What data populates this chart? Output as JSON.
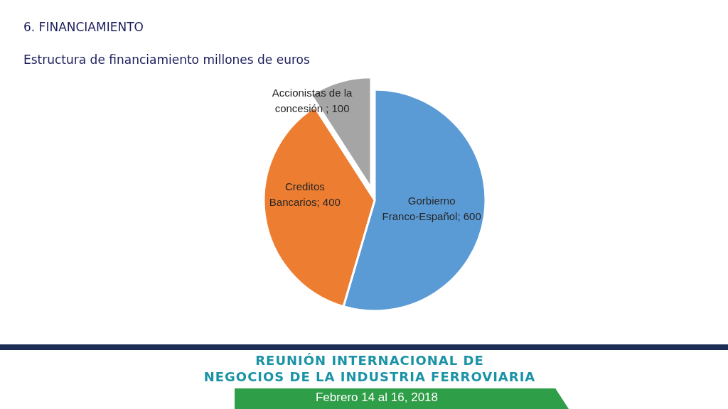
{
  "chart_data": {
    "type": "pie",
    "title": "6. FINANCIAMIENTO",
    "subtitle": "Estructura de financiamiento millones de euros",
    "categories": [
      "Gorbierno Franco-Español",
      "Creditos Bancarios",
      "Accionistas de la concesión "
    ],
    "values": [
      600,
      400,
      100
    ],
    "value_labels": [
      "; 600",
      "; 400",
      "; 100"
    ],
    "colors": [
      "#5b9bd5",
      "#ed7d31",
      "#a5a5a5"
    ],
    "annotations": [
      "REUNIÓN INTERNACIONAL DE",
      "NEGOCIOS DE LA INDUSTRIA FERROVIARIA",
      "Febrero 14 al 16, 2018"
    ]
  }
}
